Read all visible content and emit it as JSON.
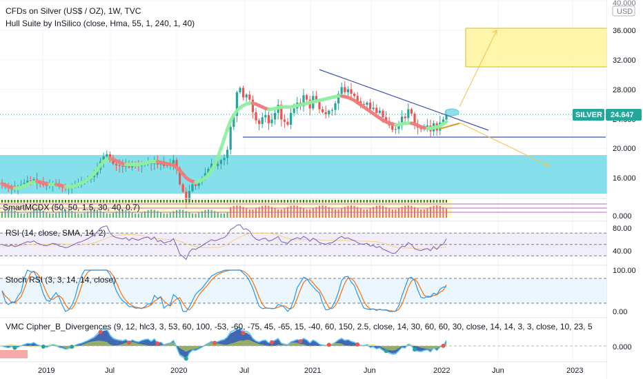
{
  "header": {
    "title": "CFDs on Silver (US$ / OZ), 1W, TVC",
    "indicator": "Hull Suite by InSilico (close, Hma, 55, 1, 240, 1, 40)"
  },
  "price_axis": {
    "currency": "USD",
    "ticks": [
      "40.000",
      "36.000",
      "32.000",
      "28.000",
      "24.000",
      "20.000",
      "16.000"
    ],
    "symbol_tag": "SILVER",
    "last_price": "24.647"
  },
  "time_axis": {
    "ticks": [
      "2019",
      "Jul",
      "2020",
      "Jul",
      "2021",
      "Jun",
      "2022",
      "Jun",
      "2023"
    ]
  },
  "panes": [
    {
      "label": "SmartMCDX (50, 50, 1.5, 30, 40, 0.7)",
      "ticks": [
        "0.000"
      ]
    },
    {
      "label": "RSI (14, close, SMA, 14, 2)",
      "ticks": [
        "80.00",
        "40.00"
      ]
    },
    {
      "label": "Stoch RSI (3, 3, 14, 14, close)",
      "ticks": [
        "100.00",
        "0.00"
      ]
    },
    {
      "label": "VMC Cipher_B_Divergences (9, 12, hlc3, 3, 53, 60, 100, -53, -60, -75, 45, -65, 15, -40, 60, 150, 2.5, close, 14, 30, 60, 60, 30, close, 14, 14, 3, 3, close, 10, 23, 5",
      "ticks": [
        "0.000"
      ]
    }
  ],
  "colors": {
    "up": "#26a69a",
    "down": "#ef5350",
    "hull_up": "#8ef0a0",
    "hull_down": "#f07c7c",
    "support_zone": "#80deea",
    "target_zone": "#fff59d",
    "trendline": "#3f51b5",
    "projection": "#f5c04a",
    "symbol_tag": "#26a69a",
    "rsi_line": "#7e57c2",
    "stoch_k": "#2196f3",
    "stoch_d": "#ff6d00"
  },
  "chart_data": {
    "type": "candlestick",
    "ylim": [
      14,
      40
    ],
    "time_range": [
      "2018-09",
      "2023-04"
    ],
    "last_value": 24.647,
    "closes": [
      15.1,
      14.8,
      14.6,
      14.9,
      14.5,
      14.7,
      15.0,
      15.3,
      15.6,
      15.5,
      15.8,
      15.4,
      15.2,
      15.0,
      14.9,
      15.1,
      15.3,
      15.2,
      14.9,
      14.8,
      14.6,
      14.7,
      14.9,
      15.1,
      15.3,
      15.4,
      15.6,
      15.8,
      16.1,
      16.4,
      17.1,
      18.2,
      18.9,
      19.2,
      18.4,
      17.9,
      17.7,
      17.6,
      17.5,
      17.8,
      17.4,
      17.9,
      17.7,
      17.6,
      17.9,
      18.1,
      18.2,
      17.9,
      18.4,
      17.8,
      18.0,
      17.6,
      17.8,
      17.9,
      18.4,
      17.3,
      15.1,
      14.1,
      12.6,
      14.2,
      15.1,
      14.9,
      15.4,
      15.9,
      16.6,
      17.2,
      17.9,
      17.6,
      17.9,
      18.4,
      18.7,
      19.8,
      22.9,
      24.4,
      27.6,
      28.2,
      26.9,
      27.3,
      26.6,
      24.9,
      23.8,
      23.3,
      24.2,
      24.5,
      23.4,
      23.9,
      24.8,
      25.9,
      23.9,
      23.6,
      23.2,
      24.8,
      25.4,
      26.2,
      25.7,
      27.2,
      26.6,
      25.4,
      27.1,
      26.4,
      25.3,
      24.9,
      24.6,
      25.1,
      25.2,
      26.1,
      27.4,
      28.3,
      27.6,
      28.0,
      27.4,
      27.1,
      26.4,
      26.0,
      25.9,
      26.2,
      25.3,
      25.5,
      24.8,
      25.1,
      24.2,
      23.7,
      23.1,
      22.5,
      22.6,
      23.4,
      24.3,
      24.1,
      25.3,
      24.7,
      23.3,
      22.8,
      22.6,
      22.9,
      23.1,
      22.3,
      23.4,
      22.4,
      23.5,
      23.9,
      24.647
    ],
    "hull": [
      15.2,
      15.0,
      14.8,
      14.7,
      14.6,
      14.6,
      14.7,
      14.9,
      15.1,
      15.3,
      15.4,
      15.5,
      15.4,
      15.3,
      15.2,
      15.1,
      15.1,
      15.1,
      15.0,
      14.9,
      14.8,
      14.8,
      14.8,
      14.9,
      15.1,
      15.3,
      15.5,
      15.8,
      16.1,
      16.6,
      17.1,
      17.7,
      18.2,
      18.5,
      18.6,
      18.5,
      18.3,
      18.1,
      17.9,
      17.8,
      17.8,
      17.8,
      17.8,
      17.8,
      17.9,
      18.0,
      18.1,
      18.2,
      18.2,
      18.2,
      18.1,
      18.0,
      17.9,
      17.8,
      17.7,
      17.4,
      17.0,
      16.5,
      16.0,
      15.7,
      15.5,
      15.4,
      15.5,
      15.7,
      16.0,
      16.4,
      17.0,
      17.8,
      18.8,
      20.0,
      21.3,
      22.6,
      23.7,
      24.5,
      25.1,
      25.5,
      25.8,
      26.0,
      26.1,
      26.1,
      26.0,
      25.8,
      25.6,
      25.4,
      25.3,
      25.3,
      25.4,
      25.5,
      25.6,
      25.6,
      25.6,
      25.6,
      25.7,
      25.8,
      25.9,
      26.0,
      26.1,
      26.2,
      26.3,
      26.4,
      26.5,
      26.6,
      26.7,
      26.8,
      26.9,
      27.0,
      27.1,
      27.1,
      27.0,
      26.9,
      26.7,
      26.5,
      26.2,
      25.9,
      25.6,
      25.3,
      25.0,
      24.7,
      24.4,
      24.1,
      23.8,
      23.6,
      23.4,
      23.3,
      23.2,
      23.2,
      23.3,
      23.4,
      23.4,
      23.4,
      23.3,
      23.1,
      22.9,
      22.8,
      22.7,
      22.7,
      22.8,
      22.9,
      23.0,
      23.3,
      23.6
    ],
    "support_zone": [
      13.6,
      18.9
    ],
    "target_zone": [
      30.9,
      36.1
    ],
    "support_level": 21.5,
    "rsi_last": 60,
    "stoch_last": 60
  }
}
